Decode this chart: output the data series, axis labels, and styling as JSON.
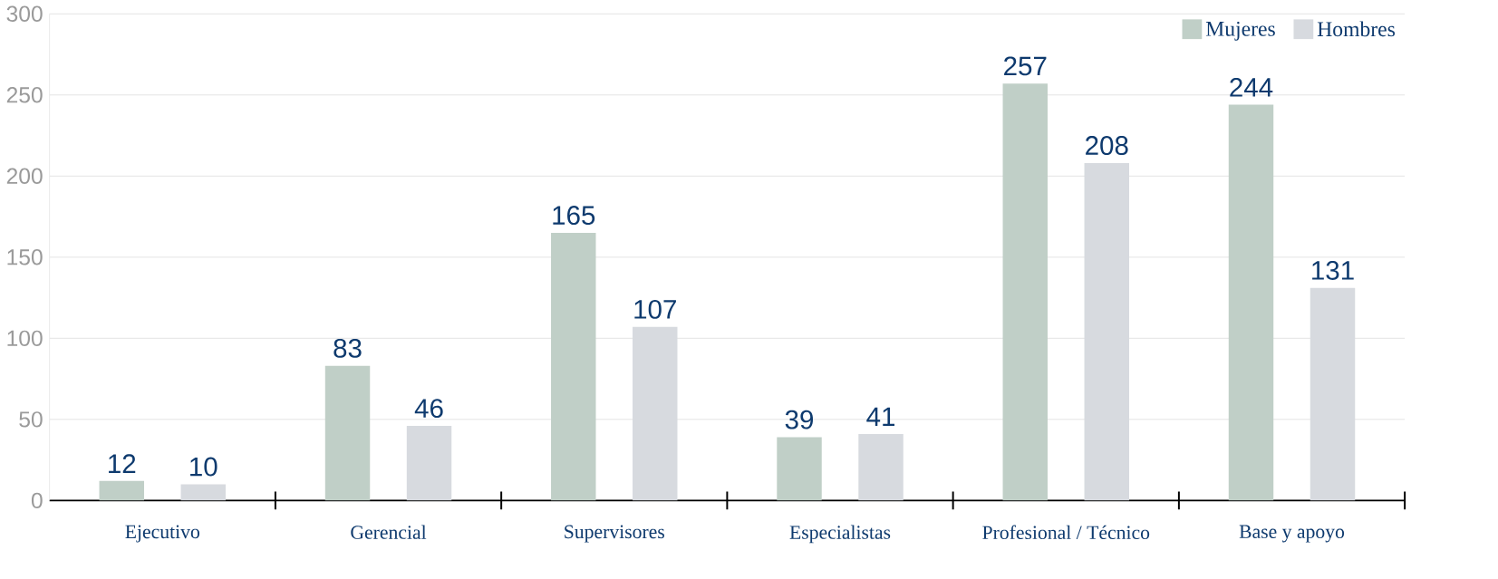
{
  "chart_data": {
    "type": "bar",
    "categories": [
      "Ejecutivo",
      "Gerencial",
      "Supervisores",
      "Especialistas",
      "Profesional / Técnico",
      "Base y  apoyo"
    ],
    "series": [
      {
        "name": "Mujeres",
        "color": "#c0cfc7",
        "values": [
          12,
          83,
          165,
          39,
          257,
          244
        ]
      },
      {
        "name": "Hombres",
        "color": "#d7dadf",
        "values": [
          10,
          46,
          107,
          41,
          208,
          131
        ]
      }
    ],
    "ylim": [
      0,
      300
    ],
    "yticks": [
      0,
      50,
      100,
      150,
      200,
      250,
      300
    ],
    "grid": "y",
    "legend": "top right",
    "data_labels": true
  }
}
